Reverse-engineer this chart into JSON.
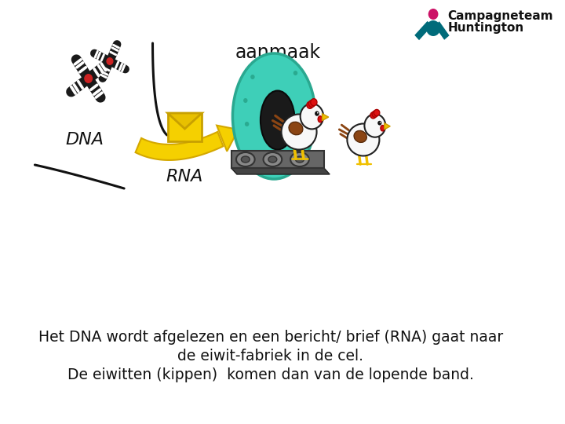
{
  "bg_color": "#ffffff",
  "label_dna": "DNA",
  "label_rna": "RNA",
  "label_aanmaak": "aanmaak",
  "label_logo1": "Campagneteam",
  "label_logo2": "Huntington",
  "caption_line1": "Het DNA wordt afgelezen en een bericht/ brief (RNA) gaat naar",
  "caption_line2": "de eiwit-fabriek in de cel.",
  "caption_line3": "De eiwitten (kippen)  komen dan van de lopende band.",
  "caption_color": "#111111",
  "caption_fontsize": 13.5,
  "label_fontsize": 16,
  "aanmaak_fontsize": 17,
  "logo_fontsize": 11,
  "arrow_color": "#f5d000",
  "arrow_edge": "#d4a800",
  "cell_color": "#3ecfb8",
  "cell_edge": "#2aa890",
  "logo_pink": "#cc1166",
  "logo_teal": "#006b7a"
}
